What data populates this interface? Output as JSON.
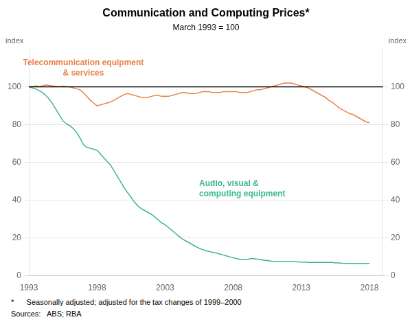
{
  "chart_data": {
    "type": "line",
    "title": "Communication and Computing Prices*",
    "subtitle": "March 1993 = 100",
    "ylabel": "index",
    "y2label": "index",
    "footnote": "*      Seasonally adjusted; adjusted for the tax changes of 1999–2000",
    "sources": "Sources:   ABS; RBA",
    "xlim": [
      1993,
      2019
    ],
    "xticks": [
      1993,
      1998,
      2003,
      2008,
      2013,
      2018
    ],
    "ylim": [
      0,
      120
    ],
    "yticks": [
      0,
      20,
      40,
      60,
      80,
      100
    ],
    "y2lim": [
      0,
      120
    ],
    "y2ticks": [
      0,
      20,
      40,
      60,
      80,
      100
    ],
    "grid": "y",
    "hline": 100,
    "x": [
      1993.0,
      1993.25,
      1993.5,
      1993.75,
      1994.0,
      1994.25,
      1994.5,
      1994.75,
      1995.0,
      1995.25,
      1995.5,
      1995.75,
      1996.0,
      1996.25,
      1996.5,
      1996.75,
      1997.0,
      1997.25,
      1997.5,
      1997.75,
      1998.0,
      1998.25,
      1998.5,
      1998.75,
      1999.0,
      1999.25,
      1999.5,
      1999.75,
      2000.0,
      2000.25,
      2000.5,
      2000.75,
      2001.0,
      2001.25,
      2001.5,
      2001.75,
      2002.0,
      2002.25,
      2002.5,
      2002.75,
      2003.0,
      2003.25,
      2003.5,
      2003.75,
      2004.0,
      2004.25,
      2004.5,
      2004.75,
      2005.0,
      2005.25,
      2005.5,
      2005.75,
      2006.0,
      2006.25,
      2006.5,
      2006.75,
      2007.0,
      2007.25,
      2007.5,
      2007.75,
      2008.0,
      2008.25,
      2008.5,
      2008.75,
      2009.0,
      2009.25,
      2009.5,
      2009.75,
      2010.0,
      2010.25,
      2010.5,
      2010.75,
      2011.0,
      2011.25,
      2011.5,
      2011.75,
      2012.0,
      2012.25,
      2012.5,
      2012.75,
      2013.0,
      2013.25,
      2013.5,
      2013.75,
      2014.0,
      2014.25,
      2014.5,
      2014.75,
      2015.0,
      2015.25,
      2015.5,
      2015.75,
      2016.0,
      2016.25,
      2016.5,
      2016.75,
      2017.0,
      2017.25,
      2017.5,
      2017.75,
      2018.0
    ],
    "series": [
      {
        "color": "#E8824A",
        "values": [
          100.0,
          100.2,
          100.5,
          100.3,
          100.5,
          101.0,
          100.8,
          100.5,
          100.3,
          100.1,
          100.4,
          100.2,
          100.0,
          99.5,
          99.0,
          98.5,
          97.0,
          95.0,
          93.0,
          91.5,
          90.0,
          90.5,
          91.0,
          91.5,
          92.0,
          93.0,
          94.0,
          95.0,
          96.0,
          96.5,
          96.0,
          95.5,
          95.0,
          94.5,
          94.5,
          94.5,
          95.0,
          95.5,
          95.5,
          95.0,
          95.0,
          95.0,
          95.5,
          96.0,
          96.5,
          97.0,
          97.0,
          96.5,
          96.5,
          96.5,
          97.0,
          97.5,
          97.5,
          97.5,
          97.0,
          97.0,
          97.0,
          97.5,
          97.5,
          97.5,
          97.5,
          97.5,
          97.0,
          97.0,
          97.0,
          97.5,
          98.0,
          98.5,
          98.5,
          99.0,
          99.5,
          100.0,
          100.5,
          101.0,
          101.5,
          102.0,
          102.0,
          102.0,
          101.5,
          101.0,
          100.5,
          100.0,
          99.5,
          98.5,
          97.5,
          96.5,
          95.5,
          94.5,
          93.0,
          92.0,
          90.5,
          89.0,
          88.0,
          87.0,
          86.0,
          85.5,
          84.5,
          83.5,
          82.5,
          81.5,
          81.0
        ]
      },
      {
        "color": "#3CB88A",
        "values": [
          100.0,
          99.5,
          99.0,
          98.0,
          97.0,
          95.5,
          93.5,
          91.0,
          88.0,
          85.0,
          82.0,
          80.5,
          79.5,
          78.0,
          76.0,
          73.0,
          69.5,
          68.0,
          67.5,
          67.0,
          66.5,
          64.5,
          62.5,
          60.5,
          58.5,
          55.5,
          52.5,
          49.5,
          46.5,
          44.0,
          41.5,
          39.0,
          37.0,
          35.5,
          34.5,
          33.5,
          32.5,
          31.0,
          29.5,
          28.0,
          27.0,
          25.5,
          24.0,
          22.5,
          21.0,
          19.5,
          18.5,
          17.5,
          16.5,
          15.5,
          14.5,
          13.8,
          13.2,
          12.8,
          12.3,
          12.0,
          11.5,
          11.0,
          10.5,
          10.0,
          9.5,
          9.0,
          8.7,
          8.5,
          8.5,
          9.0,
          9.0,
          8.8,
          8.5,
          8.2,
          8.0,
          7.8,
          7.5,
          7.5,
          7.5,
          7.5,
          7.5,
          7.5,
          7.5,
          7.3,
          7.2,
          7.2,
          7.0,
          7.0,
          7.0,
          7.0,
          7.0,
          7.0,
          7.0,
          7.0,
          6.8,
          6.8,
          6.6,
          6.5,
          6.5,
          6.5,
          6.5,
          6.5,
          6.5,
          6.5,
          6.5
        ]
      }
    ],
    "annotations": [
      {
        "text": "Telecommunication equipment\n& services",
        "x": 1997.0,
        "y": 110,
        "color": "#E8824A",
        "align": "center"
      },
      {
        "text": "Audio, visual &\ncomputing equipment",
        "x": 2005.5,
        "y": 46,
        "color": "#3CB88A",
        "align": "left"
      }
    ]
  }
}
